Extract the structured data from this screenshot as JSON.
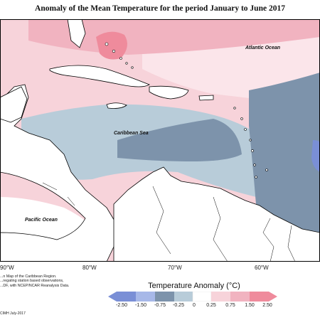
{
  "title": "Anomaly of the Mean Temperature for the period January to June 2017",
  "map_labels": {
    "atlantic": "Atlantic Ocean",
    "caribbean": "Caribbean Sea",
    "pacific": "Pacific Ocean"
  },
  "longitude_ticks": [
    "90°W",
    "80°W",
    "70°W",
    "60°W"
  ],
  "note_lines": [
    "...n Map of the Caribbean Region.",
    "...regating station based observations,",
    "...DF, with NCEP/NCAR Reanalysis Data."
  ],
  "credit": "CIMH July-2017",
  "legend": {
    "title": "Temperature Anomaly (°C)",
    "labels": [
      "-2.50",
      "-1.50",
      "-0.75",
      "-0.25",
      "0",
      "0.25",
      "0.75",
      "1.50",
      "2.50"
    ],
    "colors": {
      "strong_cold": "#7a8fd6",
      "cold": "#a7b8e8",
      "slate": "#7d93ab",
      "cool": "#b8ccd9",
      "neutral": "#ffffff",
      "warm": "#f7d3da",
      "pink": "#f1b3c0",
      "strong_warm": "#ef8b9c"
    }
  }
}
